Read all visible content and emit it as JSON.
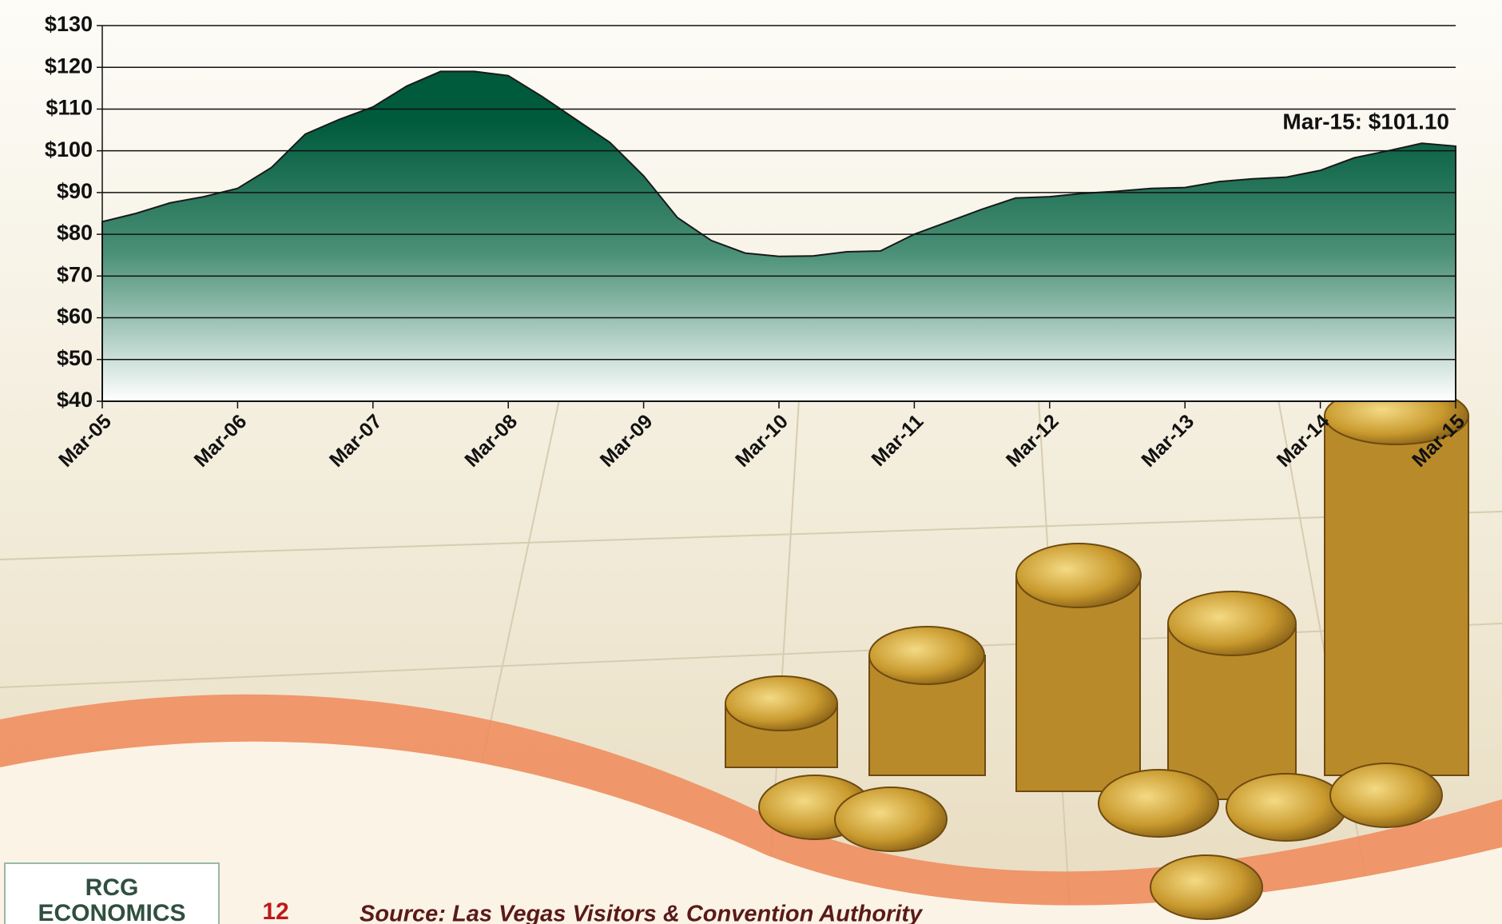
{
  "chart_data": {
    "type": "area",
    "categories": [
      "Mar-05",
      null,
      null,
      null,
      "Mar-06",
      null,
      null,
      null,
      "Mar-07",
      null,
      null,
      null,
      "Mar-08",
      null,
      null,
      null,
      "Mar-09",
      null,
      null,
      null,
      "Mar-10",
      null,
      null,
      null,
      "Mar-11",
      null,
      null,
      null,
      "Mar-12",
      null,
      null,
      null,
      "Mar-13",
      null,
      null,
      null,
      "Mar-14",
      null,
      null,
      null,
      "Mar-15"
    ],
    "values": [
      83,
      85,
      87.5,
      89,
      91,
      96,
      104,
      107.5,
      110.5,
      115.5,
      119,
      119,
      118,
      113,
      107.5,
      102,
      94,
      84,
      78.5,
      75.5,
      74.7,
      74.8,
      75.8,
      76,
      80,
      83,
      86,
      88.7,
      89,
      89.8,
      90.3,
      91,
      91.2,
      92.6,
      93.3,
      93.7,
      95.3,
      98.3,
      100,
      101.8,
      101.1
    ],
    "color": "#005a3c",
    "ylim": [
      40,
      130
    ],
    "yticks": [
      {
        "value": 40,
        "label": "$40"
      },
      {
        "value": 50,
        "label": "$50"
      },
      {
        "value": 60,
        "label": "$60"
      },
      {
        "value": 70,
        "label": "$70"
      },
      {
        "value": 80,
        "label": "$80"
      },
      {
        "value": 90,
        "label": "$90"
      },
      {
        "value": 100,
        "label": "$100"
      },
      {
        "value": 110,
        "label": "$110"
      },
      {
        "value": 120,
        "label": "$120"
      },
      {
        "value": 130,
        "label": "$130"
      }
    ],
    "grid": true,
    "annotation": "Mar-15: $101.10"
  },
  "footer": {
    "logo_line1": "RCG",
    "logo_line2": "ECONOMICS",
    "page_number": "12",
    "source": "Source: Las Vegas Visitors & Convention Authority"
  }
}
